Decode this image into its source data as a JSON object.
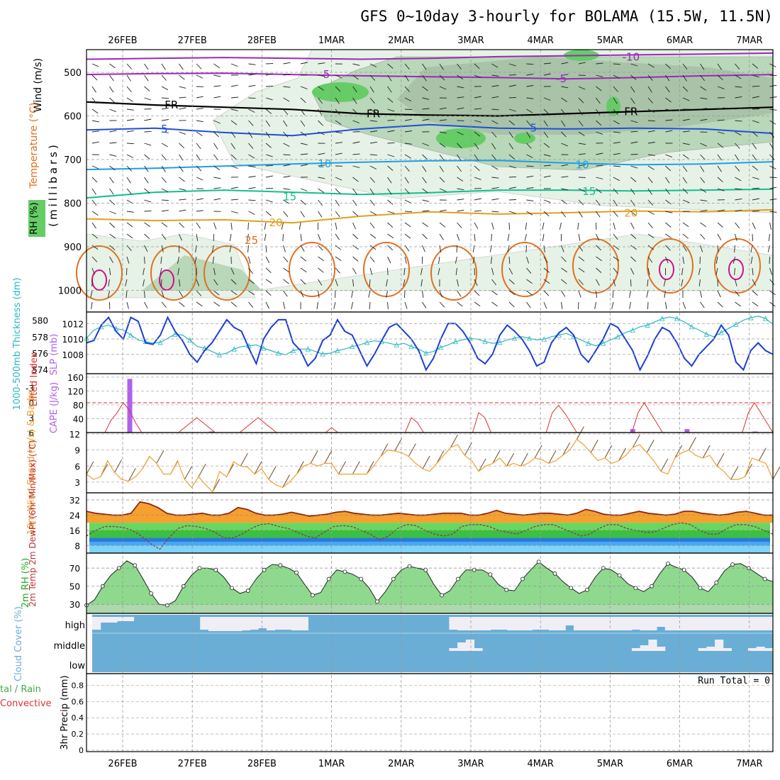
{
  "title": "GFS 0~10day 3-hourly for BOLAMA (15.5W, 11.5N)",
  "colors": {
    "rh_light": "#e6f2e6",
    "rh_mid": "#b9d7b9",
    "rh_dark": "#9ab39a",
    "rh_bright": "#66cc66",
    "temp_purple": "#9a2ab8",
    "temp_blue": "#1f4fd8",
    "temp_lightblue": "#1f9ee8",
    "temp_teal": "#10c090",
    "temp_gold": "#e0a020",
    "temp_orange": "#e07020",
    "temp_magenta": "#d0108a",
    "slp": "#1c3fd6",
    "thickness": "#2ab8c0",
    "cape": "#b060f0",
    "lifted": "#e03030",
    "wind10m": "#f0a030",
    "rh2m": "#33dd33",
    "cloud": "#6aaed6",
    "cloud_fill": "#f0eef5"
  },
  "chart_data": [
    {
      "type": "heatmap",
      "panel": "upper-air",
      "ylabel_lines": [
        "(millibars)"
      ],
      "side_labels": {
        "wind": "Wind (m/s)",
        "temperature": "Temperature (°C)",
        "rh": "RH (%)"
      },
      "y_ticks": [
        500,
        600,
        700,
        800,
        900,
        1000
      ],
      "ylim": [
        1000,
        450
      ],
      "x_ticks": [
        "26FEB",
        "27FEB",
        "28FEB",
        "1MAR",
        "2MAR",
        "3MAR",
        "4MAR",
        "5MAR",
        "6MAR",
        "7MAR"
      ],
      "isotherm_labels": [
        {
          "text": "-10",
          "level": 465,
          "day": 7.3
        },
        {
          "text": "-5",
          "level": 505,
          "day": 2.9
        },
        {
          "text": "-5",
          "level": 515,
          "day": 6.3
        },
        {
          "text": "FR",
          "level": 575,
          "day": 0.7
        },
        {
          "text": "FR",
          "level": 595,
          "day": 3.6
        },
        {
          "text": "FR",
          "level": 590,
          "day": 7.3
        },
        {
          "text": "5",
          "level": 630,
          "day": 0.6
        },
        {
          "text": "5",
          "level": 628,
          "day": 5.9
        },
        {
          "text": "10",
          "level": 710,
          "day": 2.9
        },
        {
          "text": "10",
          "level": 712,
          "day": 6.6
        },
        {
          "text": "15",
          "level": 785,
          "day": 2.4
        },
        {
          "text": "15",
          "level": 773,
          "day": 6.7
        },
        {
          "text": "20",
          "level": 845,
          "day": 2.2
        },
        {
          "text": "20",
          "level": 823,
          "day": 7.3
        },
        {
          "text": "25",
          "level": 885,
          "day": 1.85
        }
      ]
    },
    {
      "type": "line",
      "panel": "slp-thickness",
      "ylabel_left": "1000-500mb Thickness (dm)",
      "ylabel_right": "SLP (mb)",
      "y_ticks_left": [
        574,
        576,
        578,
        580
      ],
      "y_ticks_right": [
        1008,
        1010,
        1012
      ],
      "ylim_slp": [
        1005.5,
        1013.5
      ],
      "series": [
        {
          "name": "SLP",
          "values": [
            1009.5,
            1009.8,
            1011.8,
            1012.8,
            1011.0,
            1010.0,
            1012.8,
            1012.3,
            1009.5,
            1009.3,
            1010.5,
            1012.8,
            1011.0,
            1009.8,
            1008.0,
            1007.0,
            1008.5,
            1009.5,
            1011.0,
            1012.5,
            1011.5,
            1011.0,
            1008.8,
            1006.8,
            1010.0,
            1011.5,
            1012.5,
            1012.5,
            1009.5,
            1008.5,
            1006.5,
            1007.5,
            1009.8,
            1010.5,
            1012.5,
            1011.0,
            1010.5,
            1008.5,
            1006.5,
            1008.0,
            1009.8,
            1011.5,
            1012.0,
            1011.0,
            1010.0,
            1008.5,
            1006.0,
            1007.5,
            1010.0,
            1012.0,
            1012.0,
            1011.0,
            1009.5,
            1007.5,
            1006.8,
            1008.0,
            1010.5,
            1011.8,
            1011.0,
            1010.0,
            1008.5,
            1006.5,
            1007.0,
            1009.5,
            1010.8,
            1011.5,
            1010.5,
            1008.0,
            1007.0,
            1008.5,
            1010.0,
            1012.0,
            1011.5,
            1010.0,
            1008.5,
            1006.0,
            1007.8,
            1010.0,
            1011.5,
            1011.0,
            1009.5,
            1007.5,
            1006.5,
            1008.0,
            1009.0,
            1010.0,
            1011.8,
            1010.5,
            1007.0,
            1006.0,
            1008.5,
            1009.5,
            1008.5,
            1008.0
          ]
        },
        {
          "name": "Thickness",
          "values": [
            577.8,
            578.8,
            579.2,
            579.4,
            579.0,
            578.8,
            578.2,
            577.6,
            577.4,
            577.2,
            577.3,
            577.8,
            578.3,
            578.2,
            577.6,
            576.8,
            576.6,
            576.2,
            575.8,
            576.0,
            576.5,
            576.8,
            576.9,
            577.0,
            576.6,
            576.3,
            576.0,
            575.8,
            576.3,
            576.5,
            576.5,
            576.2,
            575.9,
            576.0,
            576.3,
            576.5,
            576.8,
            577.0,
            577.3,
            577.5,
            577.4,
            577.2,
            577.0,
            577.2,
            576.8,
            576.5,
            576.0,
            576.2,
            576.7,
            577.0,
            577.4,
            577.6,
            577.8,
            577.7,
            577.4,
            577.2,
            577.3,
            577.6,
            577.8,
            578.0,
            577.8,
            577.6,
            577.7,
            578.0,
            578.2,
            578.4,
            578.0,
            577.6,
            577.2,
            576.9,
            577.2,
            577.6,
            578.0,
            578.5,
            578.8,
            579.2,
            579.4,
            579.8,
            580.2,
            580.4,
            580.2,
            579.8,
            579.2,
            578.8,
            578.3,
            578.0,
            578.5,
            579.0,
            579.5,
            580.0,
            580.3,
            580.5,
            580.2,
            579.5
          ]
        }
      ]
    },
    {
      "type": "bar",
      "panel": "cape-li",
      "ylabel_left": "Lifted Index",
      "ylabel_right": "CAPE (J/kg)",
      "y_ticks_left": [
        "-3",
        "0",
        "3",
        "6"
      ],
      "y_ticks_right": [
        40,
        80,
        120,
        160
      ],
      "cape_values": [
        0,
        0,
        0,
        0,
        0,
        0,
        155,
        0,
        0,
        0,
        0,
        0,
        0,
        0,
        0,
        0,
        0,
        0,
        3,
        0,
        0,
        0,
        0,
        0,
        0,
        0,
        0,
        0,
        0,
        0,
        0,
        0,
        0,
        0,
        0,
        0,
        0,
        0,
        0,
        0,
        0,
        0,
        0,
        0,
        0,
        0,
        0,
        0,
        0,
        0,
        0,
        0,
        0,
        0,
        0,
        0,
        0,
        0,
        0,
        0,
        0,
        0,
        0,
        0,
        0,
        0,
        0,
        0,
        0,
        0,
        0,
        0,
        0,
        0,
        0,
        0,
        0,
        0,
        0,
        0,
        10,
        0,
        0,
        0,
        0,
        0,
        0,
        0,
        10,
        0,
        0,
        0,
        0,
        0,
        0,
        0,
        0,
        0,
        3,
        0,
        0
      ],
      "lifted_index": [
        6,
        6,
        6,
        6,
        3.5,
        2,
        0,
        1.5,
        4,
        6,
        6,
        6,
        6,
        6,
        6,
        6,
        5,
        4,
        3,
        4,
        5,
        6,
        6,
        6,
        6,
        6,
        5,
        4,
        3,
        4,
        5,
        6,
        6,
        6,
        6,
        6,
        6,
        6,
        6,
        6,
        5,
        6,
        6,
        6,
        6,
        6,
        6,
        6,
        6,
        6,
        6,
        6,
        6,
        3,
        4,
        6,
        6,
        6,
        6,
        6,
        6,
        6,
        6,
        6,
        2,
        3,
        6,
        6,
        6,
        6,
        6,
        6,
        6,
        6,
        6,
        6,
        2,
        0.5,
        2,
        4,
        6,
        6,
        6,
        6,
        6,
        6,
        6,
        6,
        6,
        6,
        2,
        0,
        2,
        4,
        6,
        6,
        6,
        6,
        6,
        6,
        6,
        6,
        6,
        6,
        6,
        6,
        6,
        6,
        2,
        0,
        2,
        4,
        6
      ]
    },
    {
      "type": "line",
      "panel": "wind10m",
      "ylabel": "10m Wind Speed (m/s) & Barbs",
      "y_ticks": [
        3,
        6,
        9,
        12
      ],
      "ylim": [
        1,
        12
      ],
      "values": [
        4.5,
        3.5,
        4.0,
        7.0,
        4.8,
        3.5,
        3.2,
        4.0,
        5.5,
        7.8,
        6.5,
        4.5,
        4.5,
        7.0,
        3.5,
        2.0,
        4.0,
        2.5,
        1.2,
        5.0,
        4.0,
        6.8,
        6.0,
        5.8,
        4.5,
        5.5,
        3.5,
        2.5,
        2.0,
        3.0,
        4.5,
        6.0,
        6.5,
        6.0,
        6.5,
        6.5,
        4.5,
        4.5,
        4.5,
        4.5,
        4.5,
        6.0,
        7.8,
        9.0,
        8.8,
        8.5,
        7.8,
        6.5,
        5.5,
        5.0,
        6.5,
        8.0,
        9.5,
        10.0,
        8.0,
        7.0,
        5.0,
        6.0,
        6.5,
        7.5,
        6.0,
        6.5,
        6.0,
        6.5,
        7.5,
        7.2,
        6.5,
        7.0,
        8.0,
        9.0,
        11.0,
        10.0,
        8.5,
        7.0,
        7.5,
        6.5,
        7.0,
        8.0,
        9.5,
        10.0,
        8.5,
        7.0,
        5.0,
        4.5,
        7.5,
        8.5,
        9.0,
        8.0,
        7.5,
        8.0,
        6.0,
        5.0,
        3.5,
        3.5,
        4.0,
        7.5,
        7.0,
        6.5,
        3.5
      ]
    },
    {
      "type": "area",
      "panel": "temp2m",
      "ylabel": "2m Temp 2m DewPt (6hr Min/Max) (°C)",
      "y_ticks": [
        8,
        16,
        24,
        32
      ],
      "ylim": [
        4,
        35
      ],
      "temp": [
        26,
        25,
        24.5,
        24,
        24,
        25,
        31,
        30,
        28,
        25,
        24,
        24,
        24.5,
        25,
        24,
        24,
        25,
        28,
        27,
        25,
        24,
        24,
        24.5,
        25.5,
        24.5,
        23.5,
        24,
        24.5,
        25.5,
        26,
        25,
        24.5,
        24,
        24,
        24.5,
        25,
        24.5,
        24,
        24,
        24.5,
        25,
        25,
        25,
        24,
        24,
        25,
        26.5,
        25,
        24.5,
        24,
        24.5,
        25,
        25,
        24.5,
        24,
        25,
        27,
        26,
        24.5,
        24,
        24,
        25,
        26,
        25,
        24.5,
        24,
        24.5,
        26,
        26,
        25,
        24.5,
        24,
        24.5,
        25.5,
        26,
        25,
        24,
        24
      ],
      "dewpoint": [
        13,
        16,
        18,
        18,
        17.5,
        16,
        13,
        9,
        6,
        12,
        17,
        18.5,
        18,
        17,
        15,
        12,
        12,
        14,
        17,
        19,
        19.5,
        18,
        17,
        15,
        13,
        12,
        15,
        18,
        18.5,
        18,
        16,
        14,
        11,
        13,
        17,
        19,
        18.5,
        16,
        14,
        13,
        14,
        18,
        19,
        19,
        18,
        16,
        15,
        14,
        16,
        18,
        19,
        19,
        17,
        15,
        13,
        14,
        17,
        19,
        19,
        17,
        16,
        15,
        15,
        17,
        19,
        20,
        19,
        16,
        14,
        14,
        17,
        19,
        19,
        18,
        16,
        14
      ]
    },
    {
      "type": "area",
      "panel": "rh2m",
      "ylabel": "2m RH (%)",
      "y_ticks": [
        30,
        50,
        70
      ],
      "ylim": [
        20,
        85
      ],
      "values": [
        29,
        35,
        50,
        62,
        70,
        78,
        73,
        58,
        42,
        30,
        29,
        34,
        50,
        62,
        70,
        70,
        68,
        60,
        48,
        42,
        45,
        58,
        68,
        74,
        73,
        70,
        65,
        52,
        40,
        43,
        58,
        68,
        66,
        63,
        58,
        48,
        33,
        44,
        58,
        68,
        72,
        70,
        68,
        52,
        40,
        45,
        58,
        68,
        68,
        68,
        63,
        52,
        46,
        45,
        58,
        68,
        77,
        70,
        64,
        55,
        48,
        42,
        46,
        60,
        70,
        68,
        62,
        53,
        48,
        44,
        50,
        64,
        75,
        71,
        68,
        60,
        48,
        44,
        54,
        67,
        74,
        75,
        70,
        64,
        58,
        55
      ]
    },
    {
      "type": "bar",
      "panel": "cloud",
      "ylabel": "Cloud Cover (%)",
      "row_labels": [
        "high",
        "middle",
        "low"
      ],
      "high": [
        90,
        40,
        40,
        30,
        30,
        0,
        0,
        0,
        0,
        0,
        0,
        0,
        0,
        90,
        100,
        100,
        100,
        100,
        95,
        90,
        80,
        95,
        90,
        90,
        95,
        95,
        0,
        0,
        0,
        0,
        0,
        0,
        0,
        0,
        0,
        0,
        0,
        0,
        0,
        0,
        0,
        0,
        0,
        90,
        95,
        95,
        95,
        95,
        90,
        90,
        95,
        95,
        95,
        90,
        90,
        95,
        95,
        60,
        95,
        95,
        95,
        95,
        95,
        95,
        95,
        90,
        95,
        95,
        70,
        95,
        95,
        95,
        95,
        95,
        95,
        95,
        95,
        95,
        95,
        95,
        95,
        95
      ],
      "middle": [
        0,
        0,
        0,
        0,
        0,
        0,
        0,
        0,
        0,
        0,
        0,
        0,
        0,
        0,
        0,
        0,
        0,
        0,
        0,
        0,
        0,
        0,
        0,
        0,
        0,
        0,
        0,
        0,
        0,
        0,
        0,
        0,
        0,
        0,
        0,
        0,
        0,
        0,
        0,
        0,
        0,
        0,
        0,
        20,
        60,
        80,
        20,
        0,
        0,
        0,
        0,
        0,
        0,
        0,
        0,
        0,
        0,
        0,
        0,
        0,
        0,
        0,
        0,
        0,
        0,
        20,
        40,
        80,
        30,
        0,
        0,
        0,
        0,
        20,
        30,
        80,
        20,
        0,
        0,
        20,
        30,
        20
      ]
    },
    {
      "type": "bar",
      "panel": "precip",
      "ylabel": "3hr Precip (mm)",
      "side_label_top": "tal / Rain",
      "side_label_bottom": "Convective",
      "run_total": "Run Total = 0",
      "y_ticks": [
        0,
        0.2,
        0.4,
        0.6,
        0.8
      ],
      "ylim": [
        0,
        0.9
      ],
      "values": []
    }
  ]
}
